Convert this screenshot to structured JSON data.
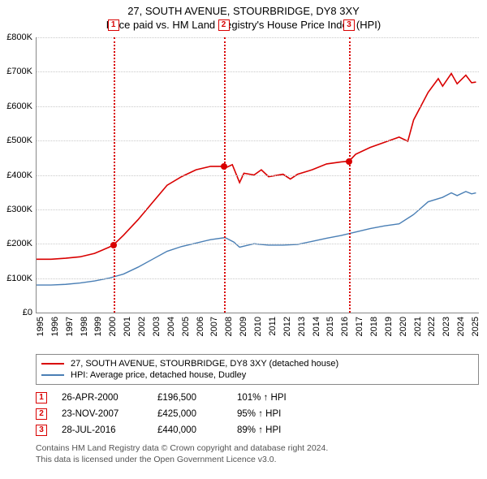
{
  "title": "27, SOUTH AVENUE, STOURBRIDGE, DY8 3XY",
  "subtitle": "Price paid vs. HM Land Registry's House Price Index (HPI)",
  "chart": {
    "type": "line",
    "background_color": "#ffffff",
    "grid_color": "#c9c9c9",
    "axis_color": "#888888",
    "ylim": [
      0,
      800
    ],
    "ytick_step": 100,
    "ytick_labels": [
      "£0",
      "£100K",
      "£200K",
      "£300K",
      "£400K",
      "£500K",
      "£600K",
      "£700K",
      "£800K"
    ],
    "xlim": [
      1995,
      2025.5
    ],
    "xticks": [
      1995,
      1996,
      1997,
      1998,
      1999,
      2000,
      2001,
      2002,
      2003,
      2004,
      2005,
      2006,
      2007,
      2008,
      2009,
      2010,
      2011,
      2012,
      2013,
      2014,
      2015,
      2016,
      2017,
      2018,
      2019,
      2020,
      2021,
      2022,
      2023,
      2024,
      2025
    ],
    "vlines": [
      {
        "x": 2000.3,
        "color": "#d90000"
      },
      {
        "x": 2007.9,
        "color": "#d90000"
      },
      {
        "x": 2016.55,
        "color": "#d90000"
      }
    ],
    "markers": [
      {
        "n": "1",
        "x": 2000.3,
        "color": "#d90000"
      },
      {
        "n": "2",
        "x": 2007.9,
        "color": "#d90000"
      },
      {
        "n": "3",
        "x": 2016.55,
        "color": "#d90000"
      }
    ],
    "points": [
      {
        "x": 2000.3,
        "y": 196.5,
        "color": "#d90000"
      },
      {
        "x": 2007.9,
        "y": 425,
        "color": "#d90000"
      },
      {
        "x": 2016.55,
        "y": 440,
        "color": "#d90000"
      }
    ],
    "series": [
      {
        "name": "price_paid",
        "color": "#d90000",
        "width": 1.6,
        "data": [
          [
            1995,
            155
          ],
          [
            1996,
            155
          ],
          [
            1997,
            158
          ],
          [
            1998,
            162
          ],
          [
            1999,
            172
          ],
          [
            2000,
            190
          ],
          [
            2000.3,
            196.5
          ],
          [
            2001,
            225
          ],
          [
            2002,
            270
          ],
          [
            2003,
            320
          ],
          [
            2004,
            370
          ],
          [
            2005,
            395
          ],
          [
            2006,
            415
          ],
          [
            2007,
            425
          ],
          [
            2007.9,
            425
          ],
          [
            2008,
            420
          ],
          [
            2008.5,
            430
          ],
          [
            2009,
            378
          ],
          [
            2009.3,
            405
          ],
          [
            2010,
            400
          ],
          [
            2010.5,
            415
          ],
          [
            2011,
            395
          ],
          [
            2012,
            402
          ],
          [
            2012.5,
            388
          ],
          [
            2013,
            402
          ],
          [
            2014,
            415
          ],
          [
            2015,
            432
          ],
          [
            2016,
            438
          ],
          [
            2016.55,
            440
          ],
          [
            2017,
            460
          ],
          [
            2018,
            480
          ],
          [
            2019,
            495
          ],
          [
            2020,
            510
          ],
          [
            2020.6,
            498
          ],
          [
            2021,
            560
          ],
          [
            2022,
            640
          ],
          [
            2022.7,
            680
          ],
          [
            2023,
            658
          ],
          [
            2023.6,
            695
          ],
          [
            2024,
            665
          ],
          [
            2024.6,
            690
          ],
          [
            2025,
            668
          ],
          [
            2025.3,
            670
          ]
        ]
      },
      {
        "name": "hpi",
        "color": "#4a7fb5",
        "width": 1.4,
        "data": [
          [
            1995,
            80
          ],
          [
            1996,
            80
          ],
          [
            1997,
            82
          ],
          [
            1998,
            86
          ],
          [
            1999,
            92
          ],
          [
            2000,
            100
          ],
          [
            2001,
            112
          ],
          [
            2002,
            132
          ],
          [
            2003,
            155
          ],
          [
            2004,
            178
          ],
          [
            2005,
            192
          ],
          [
            2006,
            202
          ],
          [
            2007,
            212
          ],
          [
            2008,
            218
          ],
          [
            2008.6,
            205
          ],
          [
            2009,
            190
          ],
          [
            2010,
            200
          ],
          [
            2011,
            196
          ],
          [
            2012,
            196
          ],
          [
            2013,
            198
          ],
          [
            2014,
            207
          ],
          [
            2015,
            216
          ],
          [
            2016,
            224
          ],
          [
            2017,
            234
          ],
          [
            2018,
            244
          ],
          [
            2019,
            252
          ],
          [
            2020,
            258
          ],
          [
            2021,
            285
          ],
          [
            2022,
            322
          ],
          [
            2023,
            335
          ],
          [
            2023.6,
            348
          ],
          [
            2024,
            340
          ],
          [
            2024.6,
            352
          ],
          [
            2025,
            345
          ],
          [
            2025.3,
            348
          ]
        ]
      }
    ]
  },
  "legend": {
    "items": [
      {
        "color": "#d90000",
        "label": "27, SOUTH AVENUE, STOURBRIDGE, DY8 3XY (detached house)"
      },
      {
        "color": "#4a7fb5",
        "label": "HPI: Average price, detached house, Dudley"
      }
    ]
  },
  "events": [
    {
      "n": "1",
      "box_color": "#d90000",
      "date": "26-APR-2000",
      "price": "£196,500",
      "pct": "101% ↑ HPI"
    },
    {
      "n": "2",
      "box_color": "#d90000",
      "date": "23-NOV-2007",
      "price": "£425,000",
      "pct": "95% ↑ HPI"
    },
    {
      "n": "3",
      "box_color": "#d90000",
      "date": "28-JUL-2016",
      "price": "£440,000",
      "pct": "89% ↑ HPI"
    }
  ],
  "footer_line1": "Contains HM Land Registry data © Crown copyright and database right 2024.",
  "footer_line2": "This data is licensed under the Open Government Licence v3.0."
}
